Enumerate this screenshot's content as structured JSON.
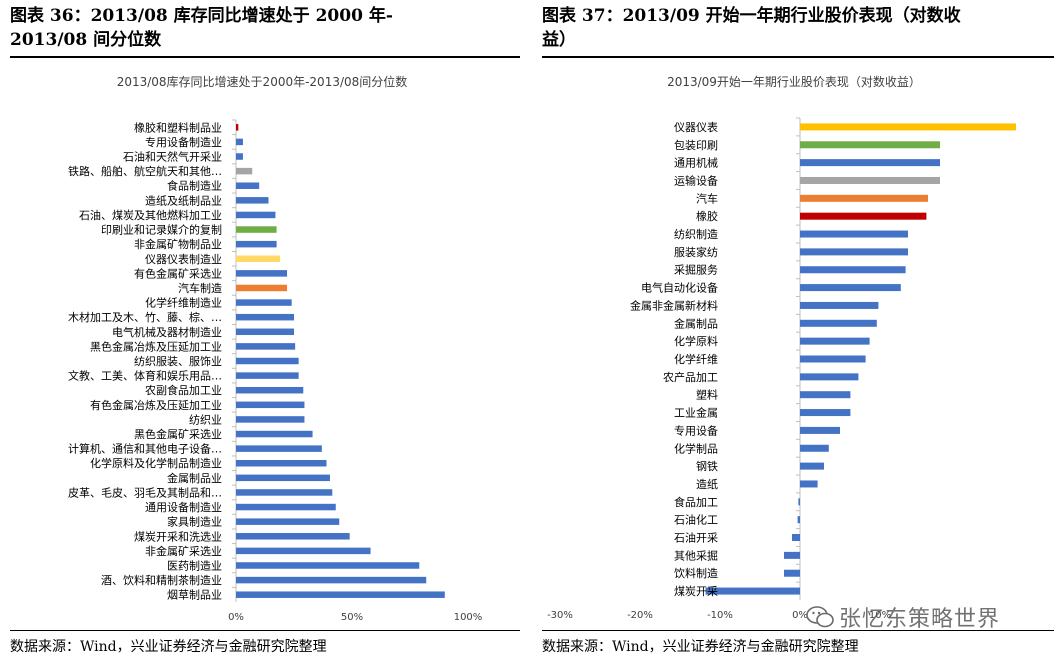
{
  "left": {
    "figure_title_line1": "图表 36：2013/08 库存同比增速处于 2000 年-",
    "figure_title_line2": "2013/08 间分位数",
    "source": "数据来源：Wind，兴业证券经济与金融研究院整理"
  },
  "right": {
    "figure_title_line1": "图表 37：2013/09 开始一年期行业股价表现（对数收",
    "figure_title_line2": "益）",
    "source": "数据来源：Wind，兴业证券经济与金融研究院整理"
  },
  "watermark": {
    "text": "张忆东策略世界",
    "icon": "wechat-icon"
  },
  "chart_data": [
    {
      "type": "bar",
      "orientation": "horizontal",
      "title": "2013/08库存同比增速处于2000年-2013/08间分位数",
      "xlim": [
        0,
        1
      ],
      "xticks": [
        0,
        0.5,
        1
      ],
      "xtick_labels": [
        "0%",
        "50%",
        "100%"
      ],
      "categories": [
        "橡胶和塑料制品业",
        "专用设备制造业",
        "石油和天然气开采业",
        "铁路、船舶、航空航天和其他…",
        "食品制造业",
        "造纸及纸制品业",
        "石油、煤炭及其他燃料加工业",
        "印刷业和记录媒介的复制",
        "非金属矿物制品业",
        "仪器仪表制造业",
        "有色金属矿采选业",
        "汽车制造",
        "化学纤维制造业",
        "木材加工及木、竹、藤、棕、…",
        "电气机械及器材制造业",
        "黑色金属冶炼及压延加工业",
        "纺织服装、服饰业",
        "文教、工美、体育和娱乐用品…",
        "农副食品加工业",
        "有色金属冶炼及压延加工业",
        "纺织业",
        "黑色金属矿采选业",
        "计算机、通信和其他电子设备…",
        "化学原料及化学制品制造业",
        "金属制品业",
        "皮革、毛皮、羽毛及其制品和…",
        "通用设备制造业",
        "家具制造业",
        "煤炭开采和洗选业",
        "非金属矿采选业",
        "医药制造业",
        "酒、饮料和精制茶制造业",
        "烟草制品业"
      ],
      "values": [
        0.01,
        0.03,
        0.03,
        0.07,
        0.1,
        0.14,
        0.17,
        0.175,
        0.175,
        0.19,
        0.22,
        0.22,
        0.24,
        0.25,
        0.25,
        0.255,
        0.27,
        0.27,
        0.29,
        0.295,
        0.295,
        0.33,
        0.37,
        0.39,
        0.405,
        0.415,
        0.43,
        0.445,
        0.49,
        0.58,
        0.79,
        0.82,
        0.9
      ],
      "colors": [
        "#c00000",
        "#4472c4",
        "#4472c4",
        "#a5a5a5",
        "#4472c4",
        "#4472c4",
        "#4472c4",
        "#70ad47",
        "#4472c4",
        "#ffd966",
        "#4472c4",
        "#ed7d31",
        "#4472c4",
        "#4472c4",
        "#4472c4",
        "#4472c4",
        "#4472c4",
        "#4472c4",
        "#4472c4",
        "#4472c4",
        "#4472c4",
        "#4472c4",
        "#4472c4",
        "#4472c4",
        "#4472c4",
        "#4472c4",
        "#4472c4",
        "#4472c4",
        "#4472c4",
        "#4472c4",
        "#4472c4",
        "#4472c4",
        "#4472c4"
      ],
      "grid": false
    },
    {
      "type": "bar",
      "orientation": "horizontal",
      "title": "2013/09开始一年期行业股价表现（对数收益）",
      "xlim": [
        -0.3,
        0.3
      ],
      "xticks": [
        -0.3,
        -0.2,
        -0.1,
        0,
        0.1
      ],
      "xtick_labels": [
        "-30%",
        "-20%",
        "-10%",
        "0%",
        "10%"
      ],
      "categories": [
        "仪器仪表",
        "包装印刷",
        "通用机械",
        "运输设备",
        "汽车",
        "橡胶",
        "纺织制造",
        "服装家纺",
        "采掘服务",
        "电气自动化设备",
        "金属非金属新材料",
        "金属制品",
        "化学原料",
        "化学纤维",
        "农产品加工",
        "塑料",
        "工业金属",
        "专用设备",
        "化学制品",
        "钢铁",
        "造纸",
        "食品加工",
        "石油化工",
        "石油开采",
        "其他采掘",
        "饮料制造",
        "煤炭开采"
      ],
      "values": [
        0.27,
        0.175,
        0.175,
        0.175,
        0.16,
        0.158,
        0.135,
        0.135,
        0.132,
        0.126,
        0.098,
        0.096,
        0.087,
        0.082,
        0.073,
        0.063,
        0.063,
        0.05,
        0.036,
        0.03,
        0.022,
        -0.002,
        -0.003,
        -0.01,
        -0.02,
        -0.02,
        -0.118
      ],
      "colors": [
        "#ffc000",
        "#70ad47",
        "#4472c4",
        "#a5a5a5",
        "#ed7d31",
        "#c00000",
        "#4472c4",
        "#4472c4",
        "#4472c4",
        "#4472c4",
        "#4472c4",
        "#4472c4",
        "#4472c4",
        "#4472c4",
        "#4472c4",
        "#4472c4",
        "#4472c4",
        "#4472c4",
        "#4472c4",
        "#4472c4",
        "#4472c4",
        "#4472c4",
        "#4472c4",
        "#4472c4",
        "#4472c4",
        "#4472c4",
        "#4472c4"
      ],
      "grid": false
    }
  ]
}
